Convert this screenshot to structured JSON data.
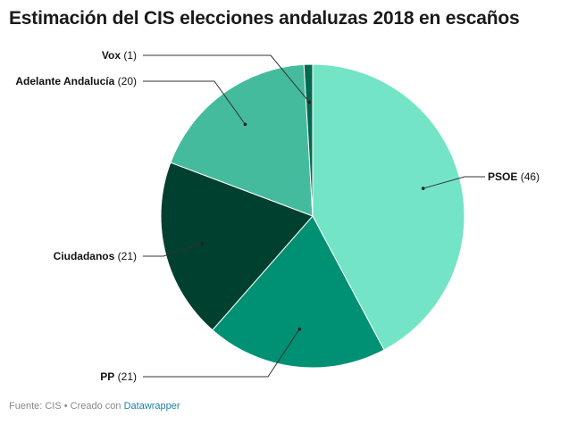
{
  "chart_data": {
    "type": "pie",
    "title": "Estimación del CIS elecciones andaluzas 2018 en escaños",
    "slices": [
      {
        "label": "PSOE",
        "value": 46,
        "display": "(46)",
        "color": "#73e4c6"
      },
      {
        "label": "PP",
        "value": 21,
        "display": "(21)",
        "color": "#009073"
      },
      {
        "label": "Ciudadanos",
        "value": 21,
        "display": "(21)",
        "color": "#00402f"
      },
      {
        "label": "Adelante Andalucía",
        "value": 20,
        "display": "(20)",
        "color": "#45bb9d"
      },
      {
        "label": "Vox",
        "value": 1,
        "display": "(1)",
        "color": "#006a50"
      }
    ]
  },
  "footer": {
    "source": "Fuente: CIS • Creado con ",
    "credit": "Datawrapper"
  }
}
